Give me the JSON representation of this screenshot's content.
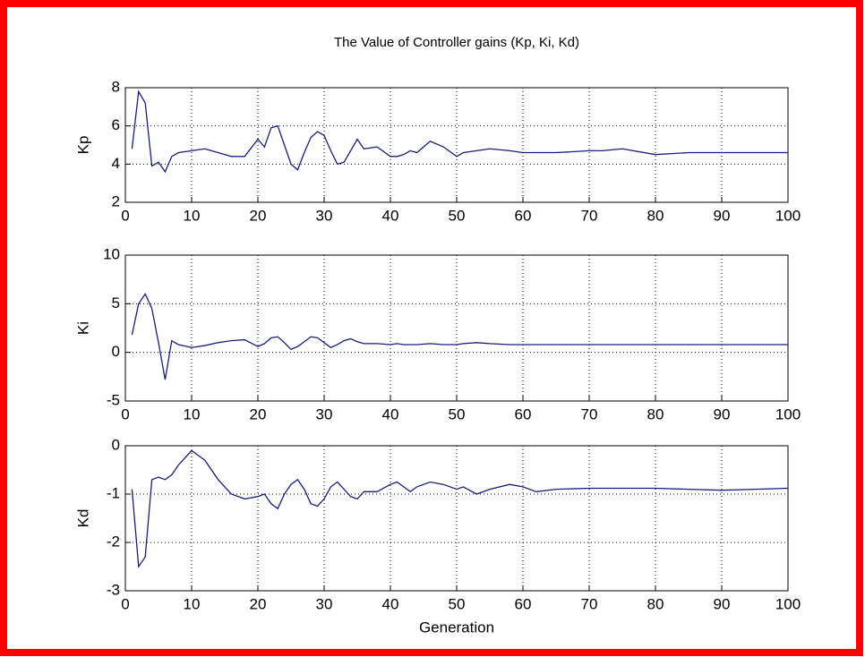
{
  "chart_data": [
    {
      "type": "line",
      "title": "The Value of Controller gains (Kp, Ki, Kd)",
      "ylabel": "Kp",
      "color": "#1c1c7c",
      "grid": true,
      "x": [
        1,
        2,
        3,
        4,
        5,
        6,
        7,
        8,
        10,
        12,
        14,
        16,
        18,
        20,
        21,
        22,
        23,
        24,
        25,
        26,
        27,
        28,
        29,
        30,
        31,
        32,
        33,
        34,
        35,
        36,
        38,
        40,
        41,
        42,
        43,
        44,
        46,
        48,
        50,
        51,
        53,
        55,
        58,
        60,
        62,
        65,
        70,
        72,
        75,
        80,
        85,
        90,
        95,
        100
      ],
      "values": [
        4.8,
        7.8,
        7.2,
        3.9,
        4.1,
        3.6,
        4.4,
        4.6,
        4.7,
        4.8,
        4.6,
        4.4,
        4.4,
        5.3,
        4.9,
        5.9,
        6.0,
        5.0,
        4.0,
        3.7,
        4.6,
        5.4,
        5.7,
        5.5,
        4.7,
        4.0,
        4.1,
        4.7,
        5.3,
        4.8,
        4.9,
        4.4,
        4.4,
        4.5,
        4.7,
        4.6,
        5.2,
        4.9,
        4.4,
        4.6,
        4.7,
        4.8,
        4.7,
        4.6,
        4.6,
        4.6,
        4.7,
        4.7,
        4.8,
        4.5,
        4.6,
        4.6,
        4.6,
        4.6
      ],
      "xlim": [
        0,
        100
      ],
      "xticks": [
        0,
        10,
        20,
        30,
        40,
        50,
        60,
        70,
        80,
        90,
        100
      ],
      "ylim": [
        2,
        8
      ],
      "yticks": [
        2,
        4,
        6,
        8
      ]
    },
    {
      "type": "line",
      "ylabel": "Ki",
      "color": "#1c1c7c",
      "grid": true,
      "x": [
        1,
        2,
        3,
        4,
        5,
        6,
        7,
        8,
        10,
        12,
        14,
        16,
        18,
        20,
        21,
        22,
        23,
        24,
        25,
        26,
        27,
        28,
        29,
        30,
        31,
        32,
        33,
        34,
        35,
        36,
        38,
        40,
        41,
        42,
        43,
        44,
        46,
        48,
        50,
        51,
        53,
        55,
        58,
        60,
        62,
        65,
        70,
        72,
        75,
        80,
        85,
        90,
        95,
        100
      ],
      "values": [
        1.8,
        5.0,
        6.0,
        4.5,
        1.0,
        -2.8,
        1.2,
        0.8,
        0.5,
        0.7,
        1.0,
        1.2,
        1.3,
        0.6,
        0.9,
        1.5,
        1.6,
        1.0,
        0.3,
        0.6,
        1.1,
        1.6,
        1.5,
        1.0,
        0.5,
        0.8,
        1.2,
        1.4,
        1.1,
        0.9,
        0.9,
        0.8,
        0.9,
        0.8,
        0.8,
        0.8,
        0.9,
        0.8,
        0.8,
        0.9,
        1.0,
        0.9,
        0.8,
        0.8,
        0.8,
        0.8,
        0.8,
        0.8,
        0.8,
        0.8,
        0.8,
        0.8,
        0.8,
        0.8
      ],
      "xlim": [
        0,
        100
      ],
      "xticks": [
        0,
        10,
        20,
        30,
        40,
        50,
        60,
        70,
        80,
        90,
        100
      ],
      "ylim": [
        -5,
        10
      ],
      "yticks": [
        -5,
        0,
        5,
        10
      ]
    },
    {
      "type": "line",
      "ylabel": "Kd",
      "xlabel": "Generation",
      "color": "#1c1c7c",
      "grid": true,
      "x": [
        1,
        2,
        3,
        4,
        5,
        6,
        7,
        8,
        10,
        12,
        14,
        16,
        18,
        20,
        21,
        22,
        23,
        24,
        25,
        26,
        27,
        28,
        29,
        30,
        31,
        32,
        33,
        34,
        35,
        36,
        38,
        40,
        41,
        42,
        43,
        44,
        46,
        48,
        50,
        51,
        53,
        55,
        58,
        60,
        62,
        65,
        70,
        72,
        75,
        80,
        85,
        90,
        95,
        100
      ],
      "values": [
        -0.9,
        -2.5,
        -2.3,
        -0.7,
        -0.65,
        -0.7,
        -0.6,
        -0.4,
        -0.1,
        -0.3,
        -0.7,
        -1.0,
        -1.1,
        -1.05,
        -1.0,
        -1.2,
        -1.3,
        -1.0,
        -0.8,
        -0.7,
        -0.9,
        -1.2,
        -1.25,
        -1.1,
        -0.85,
        -0.75,
        -0.9,
        -1.05,
        -1.1,
        -0.95,
        -0.95,
        -0.8,
        -0.75,
        -0.85,
        -0.95,
        -0.85,
        -0.75,
        -0.8,
        -0.9,
        -0.85,
        -1.0,
        -0.9,
        -0.8,
        -0.85,
        -0.95,
        -0.9,
        -0.88,
        -0.88,
        -0.88,
        -0.88,
        -0.9,
        -0.92,
        -0.9,
        -0.88
      ],
      "xlim": [
        0,
        100
      ],
      "xticks": [
        0,
        10,
        20,
        30,
        40,
        50,
        60,
        70,
        80,
        90,
        100
      ],
      "ylim": [
        -3,
        0
      ],
      "yticks": [
        -3,
        -2,
        -1,
        0
      ]
    }
  ]
}
